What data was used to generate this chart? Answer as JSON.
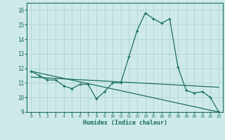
{
  "xlabel": "Humidex (Indice chaleur)",
  "background_color": "#ceeae8",
  "grid_color": "#b0d4d0",
  "line_color": "#1a6e62",
  "xlim": [
    -0.5,
    23.5
  ],
  "ylim": [
    9,
    16.5
  ],
  "yticks": [
    9,
    10,
    11,
    12,
    13,
    14,
    15,
    16
  ],
  "xticks": [
    0,
    1,
    2,
    3,
    4,
    5,
    6,
    7,
    8,
    9,
    10,
    11,
    12,
    13,
    14,
    15,
    16,
    17,
    18,
    19,
    20,
    21,
    22,
    23
  ],
  "series1_x": [
    0,
    1,
    2,
    3,
    4,
    5,
    6,
    7,
    8,
    9,
    10,
    11,
    12,
    13,
    14,
    15,
    16,
    17,
    18,
    19,
    20,
    21,
    22,
    23
  ],
  "series1_y": [
    11.8,
    11.5,
    11.2,
    11.2,
    10.8,
    10.6,
    10.9,
    10.9,
    9.9,
    10.4,
    11.0,
    11.0,
    12.8,
    14.6,
    15.8,
    15.4,
    15.1,
    15.4,
    12.1,
    10.5,
    10.3,
    10.4,
    10.0,
    9.0
  ],
  "series2_x": [
    0,
    23
  ],
  "series2_y": [
    11.8,
    9.0
  ],
  "series3_x": [
    0,
    23
  ],
  "series3_y": [
    11.4,
    10.7
  ]
}
